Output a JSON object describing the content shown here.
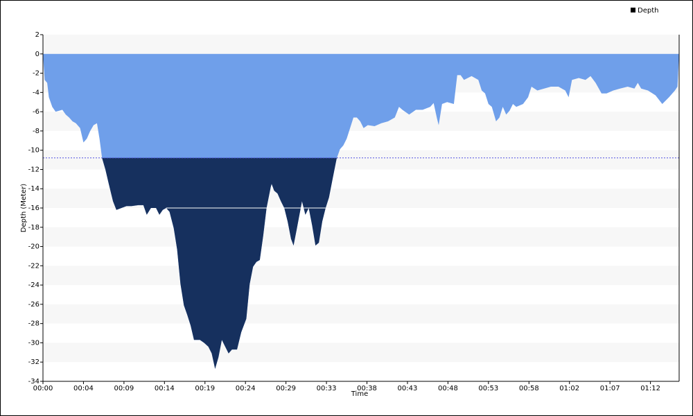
{
  "chart_data": {
    "type": "area",
    "x_label": "Time",
    "y_label": "Depth (Meter)",
    "x": [
      0,
      0.2,
      0.5,
      0.7,
      1.1,
      1.5,
      2.3,
      2.7,
      3.1,
      3.5,
      3.9,
      4.4,
      4.8,
      5.2,
      5.6,
      6.0,
      6.4,
      6.7,
      7.0,
      7.4,
      7.8,
      8.3,
      8.7,
      9.3,
      9.9,
      10.5,
      11.3,
      11.9,
      12.3,
      12.8,
      13.4,
      13.8,
      14.2,
      14.6,
      15.0,
      15.5,
      15.9,
      16.3,
      16.7,
      17.1,
      17.5,
      17.9,
      18.6,
      19.1,
      19.6,
      20.0,
      20.4,
      20.8,
      21.2,
      21.6,
      22.0,
      22.4,
      23.0,
      23.5,
      24.1,
      24.5,
      24.9,
      25.3,
      25.7,
      26.1,
      26.5,
      27.0,
      27.1,
      27.4,
      27.8,
      28.2,
      28.6,
      29.0,
      29.4,
      29.7,
      30.1,
      30.4,
      30.7,
      31.1,
      31.5,
      31.9,
      32.3,
      32.7,
      33.1,
      33.5,
      33.9,
      34.3,
      34.8,
      35.2,
      35.6,
      36.0,
      36.4,
      36.8,
      37.2,
      37.6,
      38.0,
      38.5,
      39.3,
      40.1,
      40.9,
      41.7,
      42.2,
      42.6,
      43.4,
      44.2,
      45.0,
      45.9,
      46.3,
      46.7,
      46.9,
      47.3,
      47.9,
      48.7,
      49.1,
      49.5,
      49.9,
      50.8,
      51.6,
      52.0,
      52.4,
      52.8,
      53.2,
      53.7,
      54.1,
      54.5,
      54.9,
      55.3,
      55.7,
      56.1,
      56.9,
      57.5,
      57.9,
      58.6,
      59.4,
      60.2,
      61.1,
      61.9,
      62.3,
      62.7,
      63.5,
      64.3,
      64.9,
      65.5,
      66.2,
      66.8,
      67.6,
      68.4,
      69.3,
      70.1,
      70.5,
      70.9,
      71.7,
      72.6,
      73.4,
      74.2,
      74.9,
      75.2,
      75.4
    ],
    "series": [
      {
        "name": "Depth",
        "color": "#6f9fea",
        "values": [
          0,
          -2.7,
          -3,
          -4.5,
          -5.5,
          -6,
          -5.8,
          -6.3,
          -6.6,
          -7,
          -7.2,
          -7.7,
          -9.2,
          -8.8,
          -8,
          -7.4,
          -7.2,
          -8.8,
          -10.8,
          -12,
          -13.5,
          -15.3,
          -16.2,
          -16,
          -15.8,
          -15.8,
          -15.7,
          -15.7,
          -16.7,
          -16,
          -16,
          -16.7,
          -16.2,
          -16,
          -16.4,
          -18.1,
          -20.3,
          -23.9,
          -26.1,
          -27.1,
          -28.2,
          -29.7,
          -29.7,
          -30,
          -30.4,
          -31.1,
          -32.7,
          -31.5,
          -29.7,
          -30.4,
          -31.1,
          -30.7,
          -30.7,
          -28.9,
          -27.5,
          -23.9,
          -22.1,
          -21.6,
          -21.4,
          -18.9,
          -16,
          -13.8,
          -13.5,
          -14.2,
          -14.5,
          -15.3,
          -16,
          -17.4,
          -19.2,
          -19.9,
          -18.1,
          -16.7,
          -15.3,
          -16.7,
          -16,
          -17.8,
          -19.9,
          -19.6,
          -17.4,
          -16,
          -14.9,
          -13.1,
          -10.9,
          -9.9,
          -9.5,
          -8.8,
          -7.7,
          -6.6,
          -6.6,
          -7,
          -7.7,
          -7.4,
          -7.5,
          -7.2,
          -7,
          -6.6,
          -5.5,
          -5.8,
          -6.3,
          -5.8,
          -5.8,
          -5.5,
          -5.1,
          -6.7,
          -7.4,
          -5.2,
          -5,
          -5.2,
          -2.2,
          -2.2,
          -2.7,
          -2.3,
          -2.7,
          -3.8,
          -4.1,
          -5.2,
          -5.5,
          -7,
          -6.6,
          -5.5,
          -6.3,
          -5.9,
          -5.2,
          -5.5,
          -5.2,
          -4.5,
          -3.4,
          -3.8,
          -3.6,
          -3.4,
          -3.4,
          -3.8,
          -4.5,
          -2.7,
          -2.5,
          -2.7,
          -2.3,
          -3,
          -4.1,
          -4.1,
          -3.8,
          -3.6,
          -3.4,
          -3.6,
          -3,
          -3.6,
          -3.8,
          -4.3,
          -5.2,
          -4.5,
          -3.8,
          -3.4,
          0
        ]
      }
    ],
    "below_color": "#16305e",
    "threshold": -10.8,
    "reference_line": {
      "y": -16,
      "x": [
        14.6,
        33.5
      ]
    },
    "xlim": [
      0,
      75.4
    ],
    "xticks": [
      {
        "value": 0,
        "label": "00:00"
      },
      {
        "value": 4.8,
        "label": "00:04"
      },
      {
        "value": 9.6,
        "label": "00:09"
      },
      {
        "value": 14.4,
        "label": "00:14"
      },
      {
        "value": 19.2,
        "label": "00:19"
      },
      {
        "value": 24,
        "label": "00:24"
      },
      {
        "value": 28.8,
        "label": "00:29"
      },
      {
        "value": 33.6,
        "label": "00:33"
      },
      {
        "value": 38.4,
        "label": "00:38"
      },
      {
        "value": 43.2,
        "label": "00:43"
      },
      {
        "value": 48,
        "label": "00:48"
      },
      {
        "value": 52.8,
        "label": "00:53"
      },
      {
        "value": 57.6,
        "label": "00:58"
      },
      {
        "value": 62.4,
        "label": "01:02"
      },
      {
        "value": 67.2,
        "label": "01:07"
      },
      {
        "value": 72,
        "label": "01:12"
      }
    ],
    "ylim": [
      -34,
      2
    ],
    "yticks": [
      2,
      0,
      -2,
      -4,
      -6,
      -8,
      -10,
      -12,
      -14,
      -16,
      -18,
      -20,
      -22,
      -24,
      -26,
      -28,
      -30,
      -32,
      -34
    ],
    "grid": true,
    "legend": "top-right"
  }
}
